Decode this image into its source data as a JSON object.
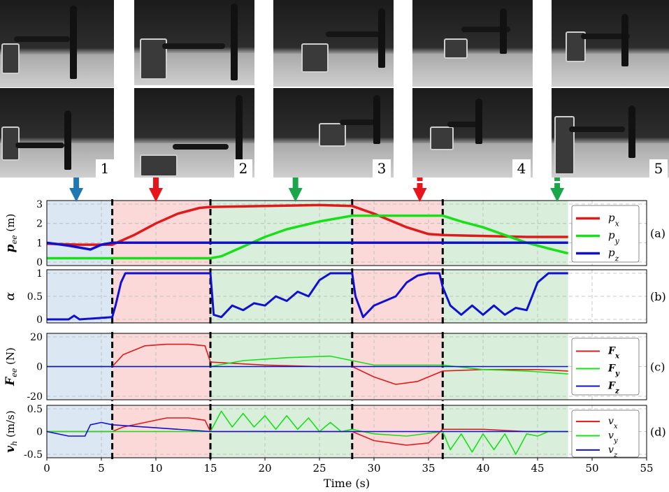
{
  "snapshots": [
    {
      "number": "1"
    },
    {
      "number": "2"
    },
    {
      "number": "3"
    },
    {
      "number": "4"
    },
    {
      "number": "5"
    }
  ],
  "colors": {
    "red": "#e01a1a",
    "green": "#18e018",
    "blue": "#1010d0",
    "phase_blue": "#dbe8f3",
    "phase_red": "#fbd9d9",
    "phase_green": "#d9efdc",
    "arrow_blue": "#1f77b4",
    "arrow_red": "#e8141c",
    "arrow_green": "#1aa64a"
  },
  "chart_data": [
    {
      "type": "line",
      "panel_label": "(a)",
      "ylabel": "p_ee (m)",
      "ylim": [
        0,
        3
      ],
      "yticks": [
        "0",
        "1",
        "2",
        "3"
      ],
      "legend": [
        "p_x",
        "p_y",
        "p_z"
      ],
      "series": [
        {
          "name": "p_x",
          "x": [
            0,
            3,
            6,
            8,
            10,
            12,
            14,
            15,
            20,
            25,
            28,
            30,
            33,
            35,
            36.3,
            40,
            44,
            47.8
          ],
          "y": [
            0.95,
            0.9,
            0.9,
            1.4,
            2.0,
            2.5,
            2.8,
            2.85,
            2.9,
            2.95,
            2.9,
            2.5,
            1.8,
            1.45,
            1.4,
            1.35,
            1.3,
            1.3
          ]
        },
        {
          "name": "p_y",
          "x": [
            0,
            6,
            10,
            15,
            16,
            18,
            20,
            22,
            25,
            28,
            30,
            33,
            36.3,
            38,
            40,
            42,
            44,
            46,
            47.8
          ],
          "y": [
            0.2,
            0.2,
            0.2,
            0.2,
            0.3,
            0.8,
            1.3,
            1.7,
            2.1,
            2.4,
            2.4,
            2.4,
            2.4,
            2.1,
            1.8,
            1.4,
            1.0,
            0.7,
            0.45
          ]
        },
        {
          "name": "p_z",
          "x": [
            0,
            2,
            4,
            5,
            6,
            10,
            15,
            20,
            28,
            36.3,
            47.8
          ],
          "y": [
            1.0,
            0.85,
            0.65,
            0.9,
            1.0,
            1.0,
            1.0,
            1.0,
            1.0,
            1.0,
            1.0
          ]
        }
      ]
    },
    {
      "type": "line",
      "panel_label": "(b)",
      "ylabel": "α",
      "ylim": [
        0,
        1
      ],
      "yticks": [
        "0",
        "0.5",
        "1"
      ],
      "series": [
        {
          "name": "alpha",
          "x": [
            0,
            2,
            2.5,
            3,
            6,
            6.3,
            6.8,
            7.2,
            8,
            9,
            12,
            14,
            15,
            15.3,
            16,
            17,
            18,
            19,
            20,
            21,
            22,
            23,
            24,
            25,
            26,
            27,
            28,
            28.3,
            29,
            30,
            31,
            32,
            33,
            34,
            35,
            36,
            36.3,
            37,
            38,
            39,
            40,
            41,
            42,
            43,
            44,
            45,
            46,
            47.8
          ],
          "y": [
            0,
            0,
            0.08,
            0,
            0.05,
            0.3,
            0.8,
            1,
            1,
            1,
            1,
            1,
            1,
            0.1,
            0.05,
            0.3,
            0.2,
            0.35,
            0.3,
            0.5,
            0.4,
            0.6,
            0.5,
            0.85,
            1,
            1,
            1,
            0.5,
            0.05,
            0.3,
            0.4,
            0.5,
            0.8,
            0.95,
            1,
            1,
            0.7,
            0.3,
            0.1,
            0.3,
            0.1,
            0.3,
            0.1,
            0.25,
            0.2,
            0.8,
            1,
            1
          ]
        }
      ]
    },
    {
      "type": "line",
      "panel_label": "(c)",
      "ylabel": "F_ee (N)",
      "ylim": [
        -20,
        20
      ],
      "yticks": [
        "-20",
        "0",
        "20"
      ],
      "legend": [
        "F_x",
        "F_y",
        "F_z"
      ],
      "series": [
        {
          "name": "F_x",
          "x": [
            0,
            6,
            7,
            9,
            11,
            13,
            14.5,
            15,
            20,
            25,
            28,
            30,
            32,
            34,
            36.3,
            40,
            45,
            47.8
          ],
          "y": [
            0,
            0,
            8,
            14,
            15,
            15,
            14,
            3,
            1,
            0,
            0,
            -7,
            -12,
            -10,
            -3,
            -2,
            -2,
            -3
          ]
        },
        {
          "name": "F_y",
          "x": [
            0,
            6,
            15,
            18,
            22,
            26,
            28,
            30,
            36.3,
            40,
            44,
            47.8
          ],
          "y": [
            0,
            0,
            0,
            4,
            6,
            7,
            4,
            1,
            1,
            -2,
            -3,
            -5
          ]
        },
        {
          "name": "F_z",
          "x": [
            0,
            47.8
          ],
          "y": [
            0,
            0
          ]
        }
      ]
    },
    {
      "type": "line",
      "panel_label": "(d)",
      "ylabel": "v_h (m/s)",
      "ylim": [
        -0.5,
        0.5
      ],
      "yticks": [
        "-0.5",
        "0",
        "0.5"
      ],
      "legend": [
        "v_x",
        "v_y",
        "v_z"
      ],
      "series": [
        {
          "name": "v_x",
          "x": [
            0,
            6,
            7,
            9,
            11,
            13,
            14.5,
            15,
            20,
            25,
            28,
            30,
            33,
            35,
            36.3,
            40,
            44,
            47.8
          ],
          "y": [
            0,
            0,
            0.1,
            0.2,
            0.3,
            0.3,
            0.25,
            0,
            0,
            0,
            0,
            -0.2,
            -0.3,
            -0.25,
            0.05,
            0.05,
            0,
            0
          ]
        },
        {
          "name": "v_y",
          "x": [
            0,
            6,
            15,
            16,
            17,
            18,
            19,
            20,
            21,
            22,
            23,
            24,
            25,
            26,
            27,
            28,
            30,
            33,
            36.3,
            37,
            38,
            39,
            40,
            41,
            42,
            43,
            44,
            45,
            46,
            47.8
          ],
          "y": [
            0,
            0,
            0,
            0.45,
            0.1,
            0.4,
            0.1,
            0.35,
            0.05,
            0.35,
            0.05,
            0.3,
            0.0,
            0.2,
            0.0,
            0.05,
            -0.05,
            -0.1,
            0,
            -0.4,
            -0.05,
            -0.45,
            -0.05,
            -0.4,
            -0.05,
            -0.5,
            -0.05,
            -0.1,
            0,
            0
          ]
        },
        {
          "name": "v_z",
          "x": [
            0,
            2,
            3.5,
            4,
            5,
            6,
            15,
            20,
            28,
            36.3,
            47.8
          ],
          "y": [
            0,
            -0.1,
            -0.1,
            0.15,
            0.2,
            0.15,
            0,
            0,
            0,
            0,
            0
          ]
        }
      ]
    }
  ],
  "axis": {
    "xlabel": "Time (s)",
    "xlim": [
      0,
      55
    ],
    "xticks": [
      "0",
      "5",
      "10",
      "15",
      "20",
      "25",
      "30",
      "35",
      "40",
      "45",
      "50",
      "55"
    ]
  },
  "phases": [
    {
      "start": 0,
      "end": 6,
      "color": "blue"
    },
    {
      "start": 6,
      "end": 15,
      "color": "red"
    },
    {
      "start": 15,
      "end": 28,
      "color": "green"
    },
    {
      "start": 28,
      "end": 36.3,
      "color": "red"
    },
    {
      "start": 36.3,
      "end": 47.8,
      "color": "green"
    }
  ],
  "arrows": [
    {
      "time": 2.7,
      "color": "arrow_blue",
      "style": "solid"
    },
    {
      "time": 10,
      "color": "arrow_red",
      "style": "solid"
    },
    {
      "time": 22.8,
      "color": "arrow_green",
      "style": "solid"
    },
    {
      "time": 34.2,
      "color": "arrow_red",
      "style": "dashed"
    },
    {
      "time": 46.8,
      "color": "arrow_green",
      "style": "dashed"
    }
  ]
}
